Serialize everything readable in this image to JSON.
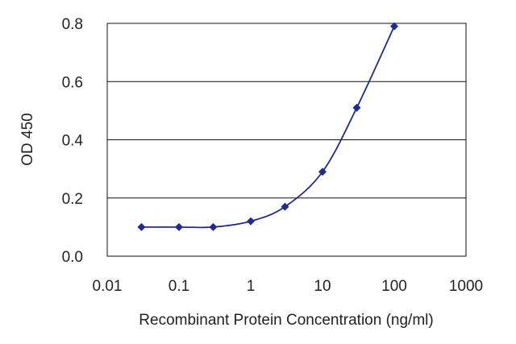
{
  "chart_data": {
    "type": "scatter",
    "title": "",
    "xlabel": "Recombinant Protein Concentration (ng/ml)",
    "ylabel": "OD 450",
    "x_scale": "log",
    "xlim": [
      0.01,
      1000
    ],
    "ylim": [
      0.0,
      0.8
    ],
    "x_ticks": [
      0.01,
      0.1,
      1,
      10,
      100,
      1000
    ],
    "x_tick_labels": [
      "0.01",
      "0.1",
      "1",
      "10",
      "100",
      "1000"
    ],
    "y_ticks": [
      0.0,
      0.2,
      0.4,
      0.6,
      0.8
    ],
    "y_tick_labels": [
      "0.0",
      "0.2",
      "0.4",
      "0.6",
      "0.8"
    ],
    "grid": "horizontal",
    "legend": "none",
    "series": [
      {
        "color": "#1f2b8f",
        "marker": "diamond",
        "fit_line": true,
        "points": [
          {
            "x": 0.03,
            "y": 0.1
          },
          {
            "x": 0.1,
            "y": 0.1
          },
          {
            "x": 0.3,
            "y": 0.1
          },
          {
            "x": 1,
            "y": 0.12
          },
          {
            "x": 3,
            "y": 0.17
          },
          {
            "x": 10,
            "y": 0.29
          },
          {
            "x": 30,
            "y": 0.51
          },
          {
            "x": 100,
            "y": 0.79
          }
        ]
      }
    ]
  }
}
